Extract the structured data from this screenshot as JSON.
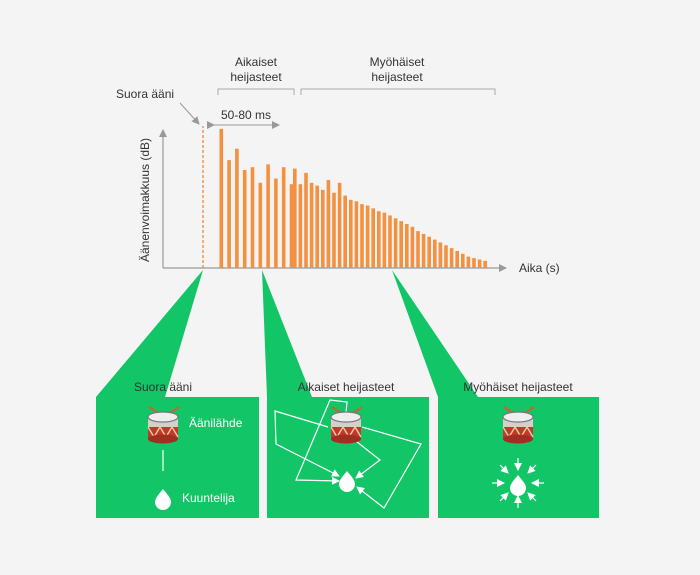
{
  "chart": {
    "ylabel": "Äänenvoimakkuus (dB)",
    "xlabel": "Aika (s)",
    "direct_label": "Suora ääni",
    "early_label_line1": "Aikaiset",
    "early_label_line2": "heijasteet",
    "late_label_line1": "Myöhäiset",
    "late_label_line2": "heijasteet",
    "interval_label": "50-80 ms"
  },
  "chart_data": {
    "type": "bar",
    "xlabel": "Aika (s)",
    "ylabel": "Äänenvoimakkuus (dB)",
    "ylim": [
      0,
      100
    ],
    "series": [
      {
        "name": "Suora ääni",
        "values": [
          100
        ]
      },
      {
        "name": "Aikaiset heijasteet",
        "values": [
          98,
          76,
          84,
          69,
          71,
          60,
          73,
          63,
          71,
          59
        ]
      },
      {
        "name": "Myöhäiset heijasteet",
        "values": [
          70,
          59,
          67,
          60,
          58,
          55,
          62,
          53,
          60,
          51,
          48,
          47,
          45,
          44,
          42,
          40,
          39,
          37,
          35,
          33,
          31,
          29,
          26,
          24,
          22,
          20,
          18,
          16,
          14,
          12,
          10,
          8,
          7,
          6,
          5
        ]
      }
    ]
  },
  "colors": {
    "bar": "#f39140",
    "green": "#12c566",
    "axis": "#999999"
  },
  "panels": [
    {
      "title": "Suora ääni",
      "source_label": "Äänilähde",
      "listener_label": "Kuuntelija"
    },
    {
      "title": "Aikaiset heijasteet"
    },
    {
      "title": "Myöhäiset heijasteet"
    }
  ],
  "icons": {
    "source": "drum-icon",
    "listener": "listener-drop-icon"
  }
}
